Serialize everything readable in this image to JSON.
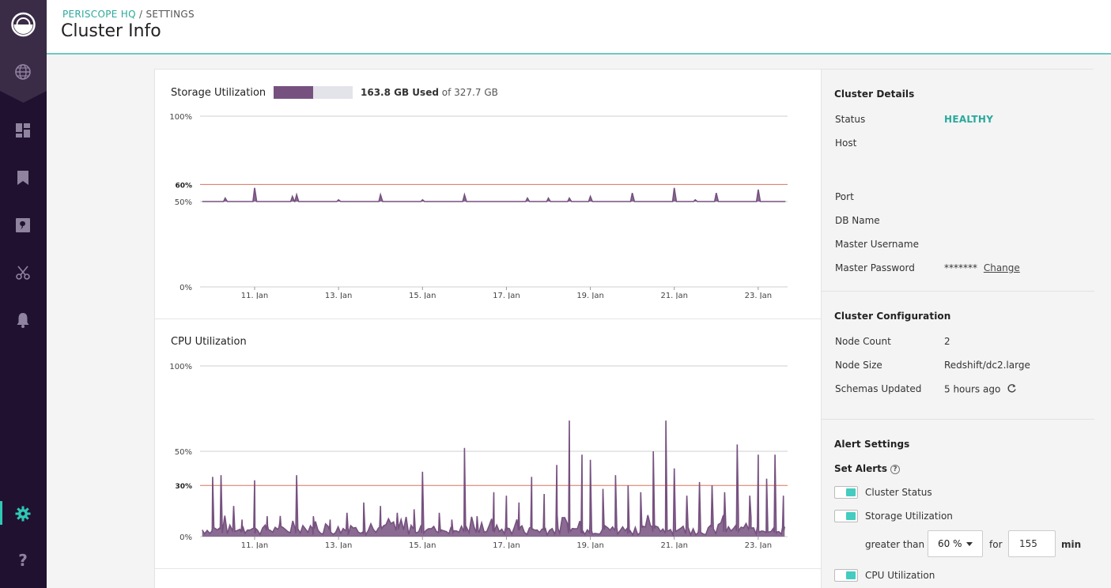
{
  "header": {
    "breadcrumb_org": "PERISCOPE HQ",
    "breadcrumb_sep": "/",
    "breadcrumb_page": "SETTINGS",
    "title": "Cluster Info"
  },
  "sidebar": {
    "items": [
      {
        "icon": "globe-icon"
      },
      {
        "icon": "dashboard-icon"
      },
      {
        "icon": "bookmark-icon"
      },
      {
        "icon": "discovery-icon"
      },
      {
        "icon": "scissors-icon"
      },
      {
        "icon": "bell-icon"
      },
      {
        "icon": "gear-icon",
        "active": true
      },
      {
        "icon": "help-icon"
      }
    ],
    "accent": "#2fc8b4"
  },
  "storage": {
    "title": "Storage Utilization",
    "used": "163.8 GB Used",
    "total_text": "of 327.7 GB",
    "fraction_used": 0.5
  },
  "cpu": {
    "title": "CPU Utilization"
  },
  "chart_data": [
    {
      "type": "area",
      "title": "Storage Utilization",
      "x_ticks": [
        "11. Jan",
        "13. Jan",
        "15. Jan",
        "17. Jan",
        "19. Jan",
        "21. Jan",
        "23. Jan"
      ],
      "y_ticks": [
        "0%",
        "50%",
        "100%"
      ],
      "threshold": {
        "label": "60%",
        "value": 60,
        "color": "#d9735d"
      },
      "ylim": [
        0,
        100
      ],
      "xlim_days": [
        9.7,
        23.7
      ],
      "baseline": 50,
      "spikes": [
        {
          "day": 10.3,
          "value": 52
        },
        {
          "day": 11.0,
          "value": 58
        },
        {
          "day": 11.9,
          "value": 53
        },
        {
          "day": 12.0,
          "value": 54
        },
        {
          "day": 13.0,
          "value": 51
        },
        {
          "day": 14.0,
          "value": 54
        },
        {
          "day": 15.0,
          "value": 51
        },
        {
          "day": 16.0,
          "value": 54
        },
        {
          "day": 17.5,
          "value": 52
        },
        {
          "day": 18.0,
          "value": 52
        },
        {
          "day": 18.5,
          "value": 52
        },
        {
          "day": 19.0,
          "value": 53
        },
        {
          "day": 20.0,
          "value": 55
        },
        {
          "day": 21.0,
          "value": 58
        },
        {
          "day": 21.5,
          "value": 51
        },
        {
          "day": 22.0,
          "value": 55
        },
        {
          "day": 23.0,
          "value": 57
        }
      ],
      "color": "#76517f"
    },
    {
      "type": "area",
      "title": "CPU Utilization",
      "x_ticks": [
        "11. Jan",
        "13. Jan",
        "15. Jan",
        "17. Jan",
        "19. Jan",
        "21. Jan",
        "23. Jan"
      ],
      "y_ticks": [
        "0%",
        "50%",
        "100%"
      ],
      "threshold": {
        "label": "30%",
        "value": 30,
        "color": "#d9735d"
      },
      "ylim": [
        0,
        100
      ],
      "xlim_days": [
        9.7,
        23.7
      ],
      "spikes": [
        {
          "day": 10.0,
          "value": 35
        },
        {
          "day": 10.2,
          "value": 36
        },
        {
          "day": 10.5,
          "value": 18
        },
        {
          "day": 10.7,
          "value": 10
        },
        {
          "day": 11.0,
          "value": 33
        },
        {
          "day": 11.3,
          "value": 12
        },
        {
          "day": 11.6,
          "value": 8
        },
        {
          "day": 12.0,
          "value": 36
        },
        {
          "day": 12.4,
          "value": 12
        },
        {
          "day": 12.8,
          "value": 10
        },
        {
          "day": 13.2,
          "value": 14
        },
        {
          "day": 13.6,
          "value": 20
        },
        {
          "day": 14.0,
          "value": 18
        },
        {
          "day": 14.4,
          "value": 14
        },
        {
          "day": 14.8,
          "value": 16
        },
        {
          "day": 15.0,
          "value": 38
        },
        {
          "day": 15.4,
          "value": 14
        },
        {
          "day": 15.7,
          "value": 10
        },
        {
          "day": 16.0,
          "value": 52
        },
        {
          "day": 16.3,
          "value": 12
        },
        {
          "day": 16.7,
          "value": 26
        },
        {
          "day": 17.0,
          "value": 24
        },
        {
          "day": 17.3,
          "value": 20
        },
        {
          "day": 17.6,
          "value": 35
        },
        {
          "day": 17.9,
          "value": 25
        },
        {
          "day": 18.2,
          "value": 42
        },
        {
          "day": 18.5,
          "value": 68
        },
        {
          "day": 18.8,
          "value": 48
        },
        {
          "day": 19.0,
          "value": 45
        },
        {
          "day": 19.3,
          "value": 28
        },
        {
          "day": 19.6,
          "value": 36
        },
        {
          "day": 19.9,
          "value": 30
        },
        {
          "day": 20.2,
          "value": 26
        },
        {
          "day": 20.5,
          "value": 50
        },
        {
          "day": 20.8,
          "value": 68
        },
        {
          "day": 21.0,
          "value": 40
        },
        {
          "day": 21.3,
          "value": 24
        },
        {
          "day": 21.6,
          "value": 32
        },
        {
          "day": 21.9,
          "value": 30
        },
        {
          "day": 22.2,
          "value": 26
        },
        {
          "day": 22.5,
          "value": 54
        },
        {
          "day": 22.8,
          "value": 24
        },
        {
          "day": 23.0,
          "value": 48
        },
        {
          "day": 23.2,
          "value": 34
        },
        {
          "day": 23.4,
          "value": 48
        },
        {
          "day": 23.6,
          "value": 24
        }
      ],
      "color": "#76517f"
    }
  ],
  "cluster_details": {
    "title": "Cluster Details",
    "status_label": "Status",
    "status_value": "HEALTHY",
    "status_color": "#2aa99b",
    "host_label": "Host",
    "port_label": "Port",
    "db_label": "DB Name",
    "user_label": "Master Username",
    "password_label": "Master Password",
    "password_value": "*******",
    "change_link": "Change"
  },
  "cluster_config": {
    "title": "Cluster Configuration",
    "node_count_label": "Node Count",
    "node_count_value": "2",
    "node_size_label": "Node Size",
    "node_size_value": "Redshift/dc2.large",
    "schemas_label": "Schemas Updated",
    "schemas_value": "5 hours ago"
  },
  "alerts": {
    "title": "Alert Settings",
    "set_alerts": "Set Alerts",
    "help": "?",
    "cluster_status": "Cluster Status",
    "storage_util": "Storage Utilization",
    "greater_than": "greater than",
    "threshold_value": "60 %",
    "for_label": "for",
    "minutes_value": "155",
    "min_label": "min",
    "cpu_util": "CPU Utilization"
  }
}
